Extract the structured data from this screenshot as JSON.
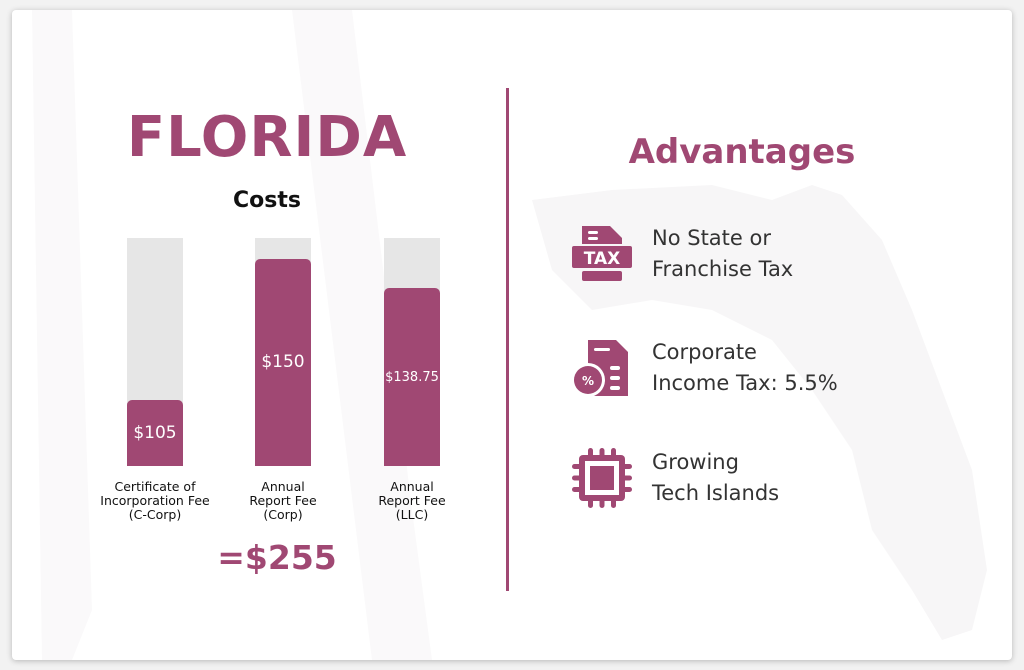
{
  "colors": {
    "accent": "#a04873",
    "track": "#e6e6e6",
    "text": "#333333"
  },
  "left": {
    "title": "FLORIDA",
    "costs_heading": "Costs",
    "total": "=$255"
  },
  "chart_data": {
    "type": "bar",
    "title": "Costs",
    "categories": [
      "Certificate of Incorporation Fee (C-Corp)",
      "Annual Report Fee (Corp)",
      "Annual Report Fee (LLC)"
    ],
    "category_lines": [
      [
        "Certificate of",
        "Incorporation Fee",
        "(C-Corp)"
      ],
      [
        "Annual",
        "Report Fee",
        "(Corp)"
      ],
      [
        "Annual",
        "Report Fee",
        "(LLC)"
      ]
    ],
    "values": [
      105,
      150,
      138.75
    ],
    "data_labels": [
      "$105",
      "$150",
      "$138.75"
    ],
    "fill_levels": [
      0.29,
      0.91,
      0.78
    ],
    "grid": false
  },
  "right": {
    "title": "Advantages",
    "items": [
      {
        "icon": "tax-document-icon",
        "line1": "No State or",
        "line2": "Franchise Tax"
      },
      {
        "icon": "percent-document-icon",
        "line1": "Corporate",
        "line2": "Income Tax: 5.5%"
      },
      {
        "icon": "chip-icon",
        "line1": "Growing",
        "line2": "Tech Islands"
      }
    ]
  }
}
